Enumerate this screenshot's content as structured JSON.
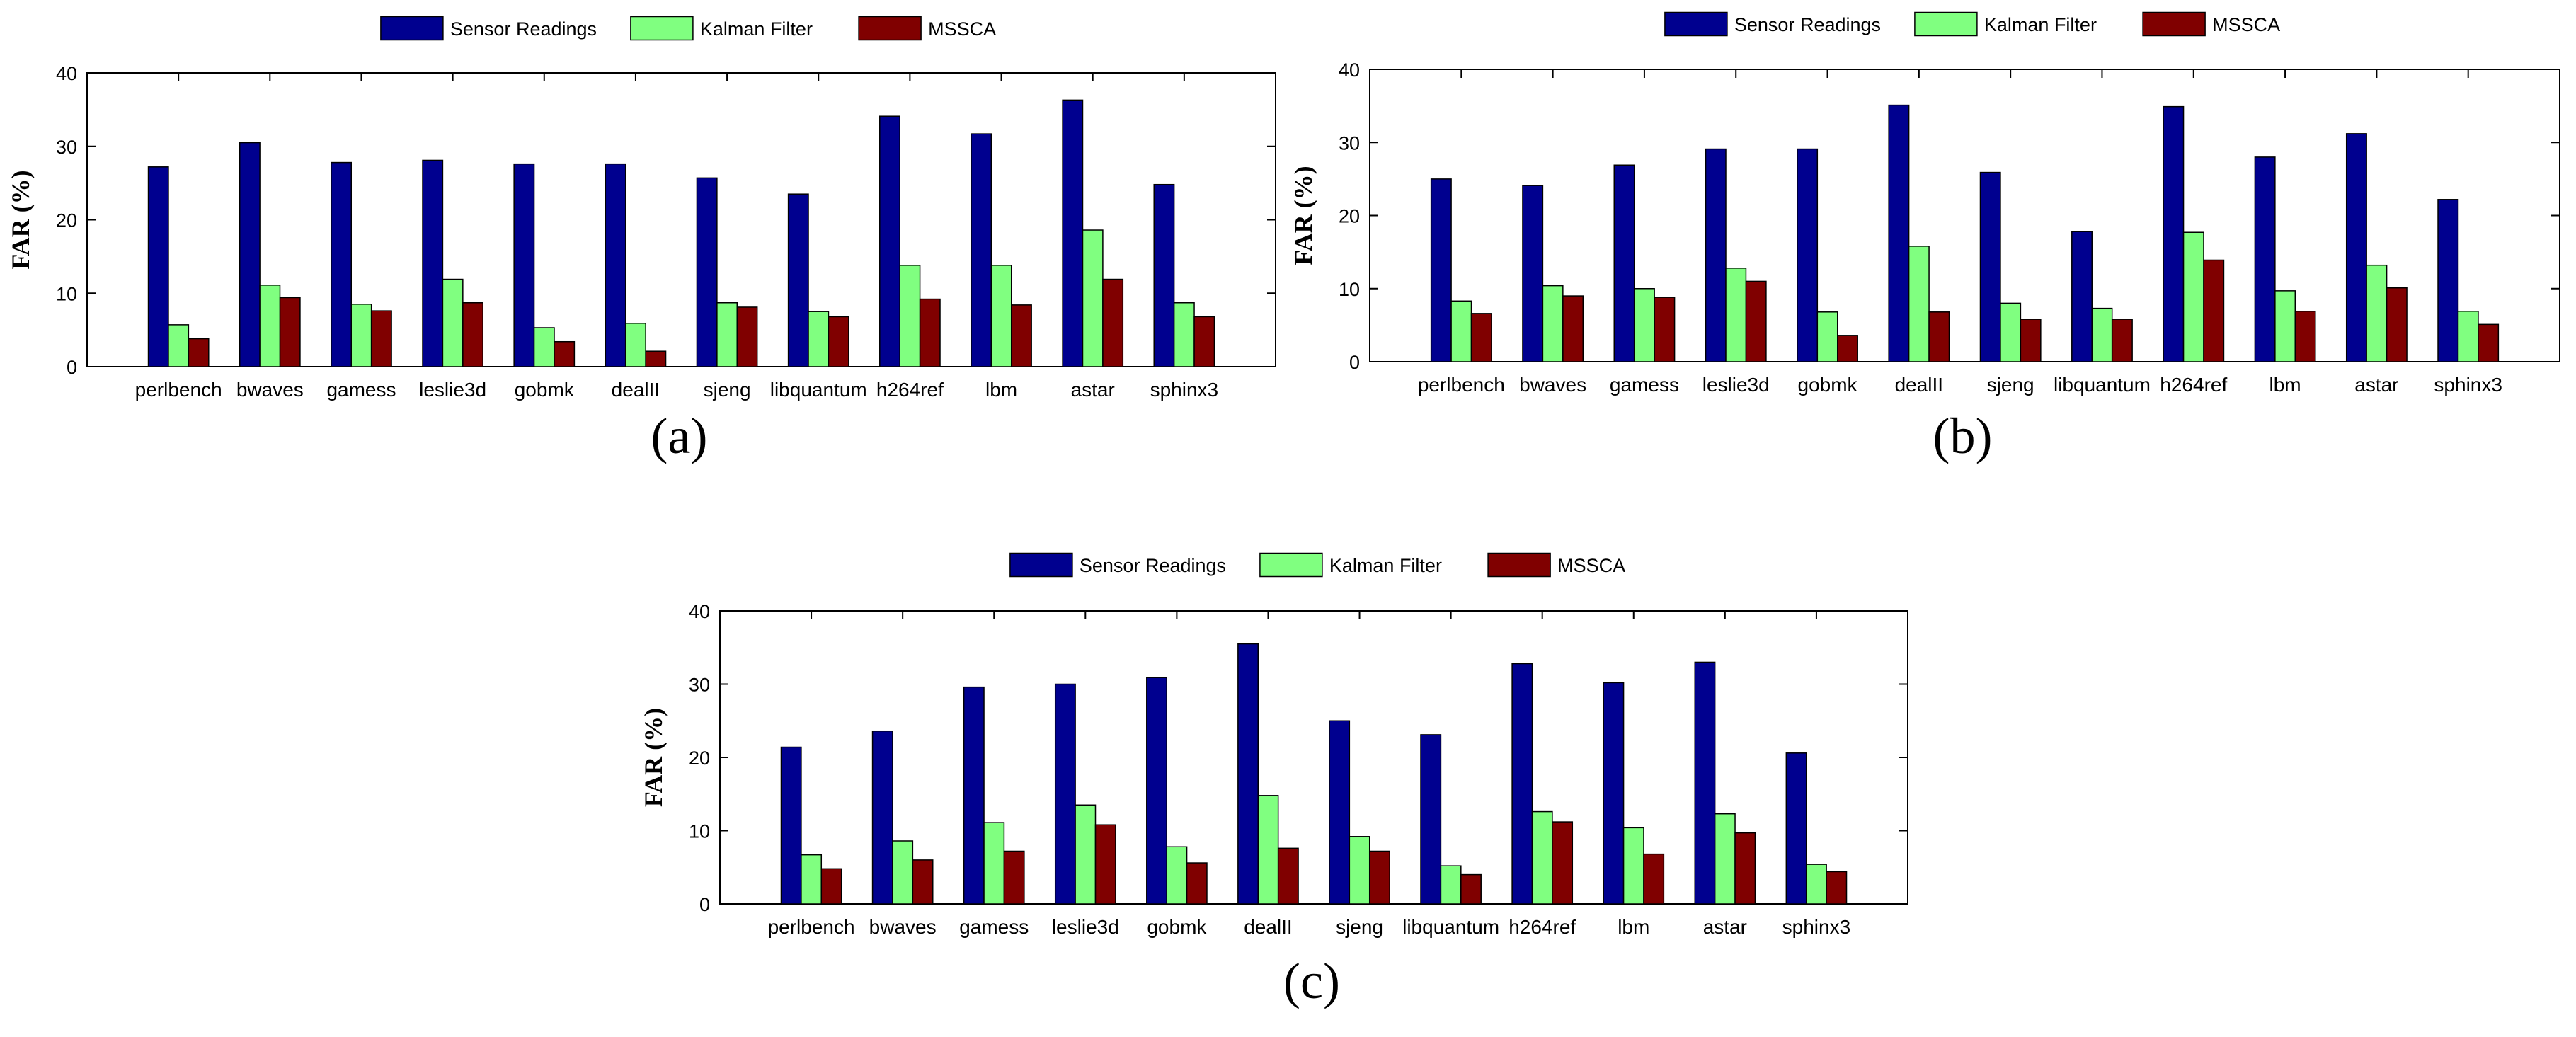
{
  "colors": {
    "sensor": "#00008f",
    "kalman": "#80ff80",
    "mssca": "#800000"
  },
  "chart_data": [
    {
      "type": "bar",
      "panel_label": "(a)",
      "ylabel": "FAR (%)",
      "xlabel": "",
      "ylim": [
        0,
        40
      ],
      "yticks": [
        0,
        10,
        20,
        30,
        40
      ],
      "legend_position": "top-center",
      "categories": [
        "perlbench",
        "bwaves",
        "gamess",
        "leslie3d",
        "gobmk",
        "dealII",
        "sjeng",
        "libquantum",
        "h264ref",
        "lbm",
        "astar",
        "sphinx3"
      ],
      "series": [
        {
          "name": "Sensor Readings",
          "values": [
            27.2,
            30.5,
            27.8,
            28.1,
            27.6,
            27.6,
            25.7,
            23.5,
            34.1,
            31.7,
            36.3,
            24.8
          ]
        },
        {
          "name": "Kalman Filter",
          "values": [
            5.7,
            11.1,
            8.5,
            11.9,
            5.3,
            5.9,
            8.7,
            7.5,
            13.8,
            13.8,
            18.6,
            8.7
          ]
        },
        {
          "name": "MSSCA",
          "values": [
            3.8,
            9.4,
            7.6,
            8.7,
            3.4,
            2.1,
            8.1,
            6.8,
            9.2,
            8.4,
            11.9,
            6.8
          ]
        }
      ]
    },
    {
      "type": "bar",
      "panel_label": "(b)",
      "ylabel": "FAR (%)",
      "xlabel": "",
      "ylim": [
        0,
        40
      ],
      "yticks": [
        0,
        10,
        20,
        30,
        40
      ],
      "legend_position": "top-center",
      "categories": [
        "perlbench",
        "bwaves",
        "gamess",
        "leslie3d",
        "gobmk",
        "dealII",
        "sjeng",
        "libquantum",
        "h264ref",
        "lbm",
        "astar",
        "sphinx3"
      ],
      "series": [
        {
          "name": "Sensor Readings",
          "values": [
            25.0,
            24.1,
            26.9,
            29.1,
            29.1,
            35.1,
            25.9,
            17.8,
            34.9,
            28.0,
            31.2,
            22.2
          ]
        },
        {
          "name": "Kalman Filter",
          "values": [
            8.3,
            10.4,
            10.0,
            12.8,
            6.8,
            15.8,
            8.0,
            7.3,
            17.7,
            9.7,
            13.2,
            6.9
          ]
        },
        {
          "name": "MSSCA",
          "values": [
            6.6,
            9.0,
            8.8,
            11.0,
            3.6,
            6.8,
            5.8,
            5.8,
            13.9,
            6.9,
            10.1,
            5.1
          ]
        }
      ]
    },
    {
      "type": "bar",
      "panel_label": "(c)",
      "ylabel": "FAR (%)",
      "xlabel": "",
      "ylim": [
        0,
        40
      ],
      "yticks": [
        0,
        10,
        20,
        30,
        40
      ],
      "legend_position": "top-center",
      "categories": [
        "perlbench",
        "bwaves",
        "gamess",
        "leslie3d",
        "gobmk",
        "dealII",
        "sjeng",
        "libquantum",
        "h264ref",
        "lbm",
        "astar",
        "sphinx3"
      ],
      "series": [
        {
          "name": "Sensor Readings",
          "values": [
            21.4,
            23.6,
            29.6,
            30.0,
            30.9,
            35.5,
            25.0,
            23.1,
            32.8,
            30.2,
            33.0,
            20.6
          ]
        },
        {
          "name": "Kalman Filter",
          "values": [
            6.7,
            8.6,
            11.1,
            13.5,
            7.8,
            14.8,
            9.2,
            5.2,
            12.6,
            10.4,
            12.3,
            5.4
          ]
        },
        {
          "name": "MSSCA",
          "values": [
            4.8,
            6.0,
            7.2,
            10.8,
            5.6,
            7.6,
            7.2,
            4.0,
            11.2,
            6.8,
            9.7,
            4.4
          ]
        }
      ]
    }
  ]
}
